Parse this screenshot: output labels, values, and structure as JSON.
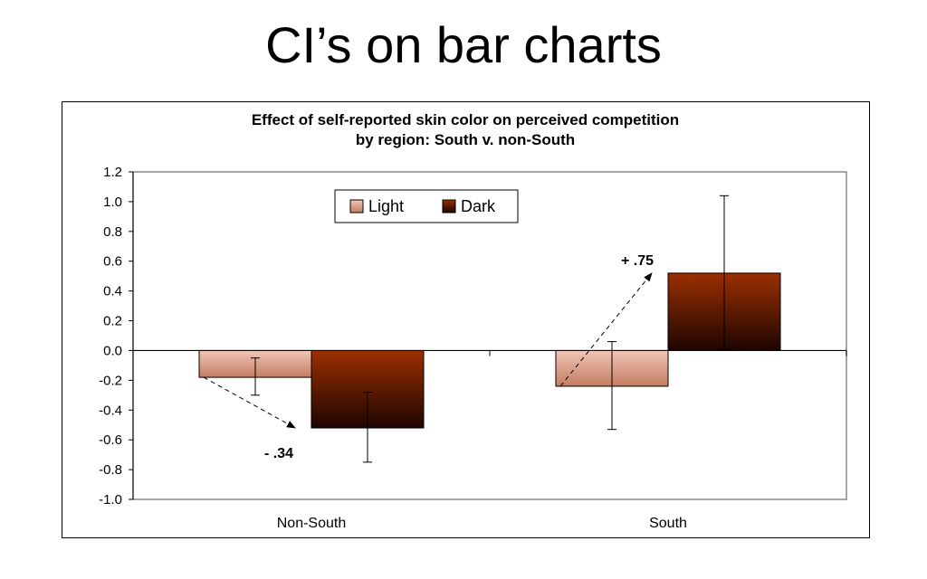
{
  "slide": {
    "title": "CI’s on bar charts"
  },
  "chart_data": {
    "type": "bar",
    "title_lines": [
      "Effect of self-reported skin color on perceived competition",
      "by region: South v. non-South"
    ],
    "categories": [
      "Non-South",
      "South"
    ],
    "series": [
      {
        "name": "Light",
        "values": [
          -0.18,
          -0.24
        ],
        "ci_low": [
          -0.3,
          -0.53
        ],
        "ci_high": [
          -0.05,
          0.06
        ]
      },
      {
        "name": "Dark",
        "values": [
          -0.52,
          0.52
        ],
        "ci_low": [
          -0.75,
          0.0
        ],
        "ci_high": [
          -0.28,
          1.04
        ]
      }
    ],
    "ylim": [
      -1.0,
      1.2
    ],
    "yticks": [
      1.2,
      1.0,
      0.8,
      0.6,
      0.4,
      0.2,
      0.0,
      -0.2,
      -0.4,
      -0.6,
      -0.8,
      -1.0
    ],
    "ytick_labels": [
      "1.2",
      "1.0",
      "0.8",
      "0.6",
      "0.4",
      "0.2",
      "0.0",
      "-0.2",
      "-0.4",
      "-0.6",
      "-0.8",
      "-1.0"
    ],
    "xlabel": "",
    "ylabel": "",
    "legend_position": "top-center",
    "annotations": [
      {
        "text": "- .34",
        "category": "Non-South",
        "from_series": "Light",
        "to_series": "Dark"
      },
      {
        "text": "+ .75",
        "category": "South",
        "from_series": "Light",
        "to_series": "Dark"
      }
    ],
    "colors": {
      "light_top": "#f0c6b6",
      "light_bottom": "#c57c61",
      "dark_top": "#9b3000",
      "dark_bottom": "#1e0500",
      "plot_border": "#888888"
    }
  }
}
